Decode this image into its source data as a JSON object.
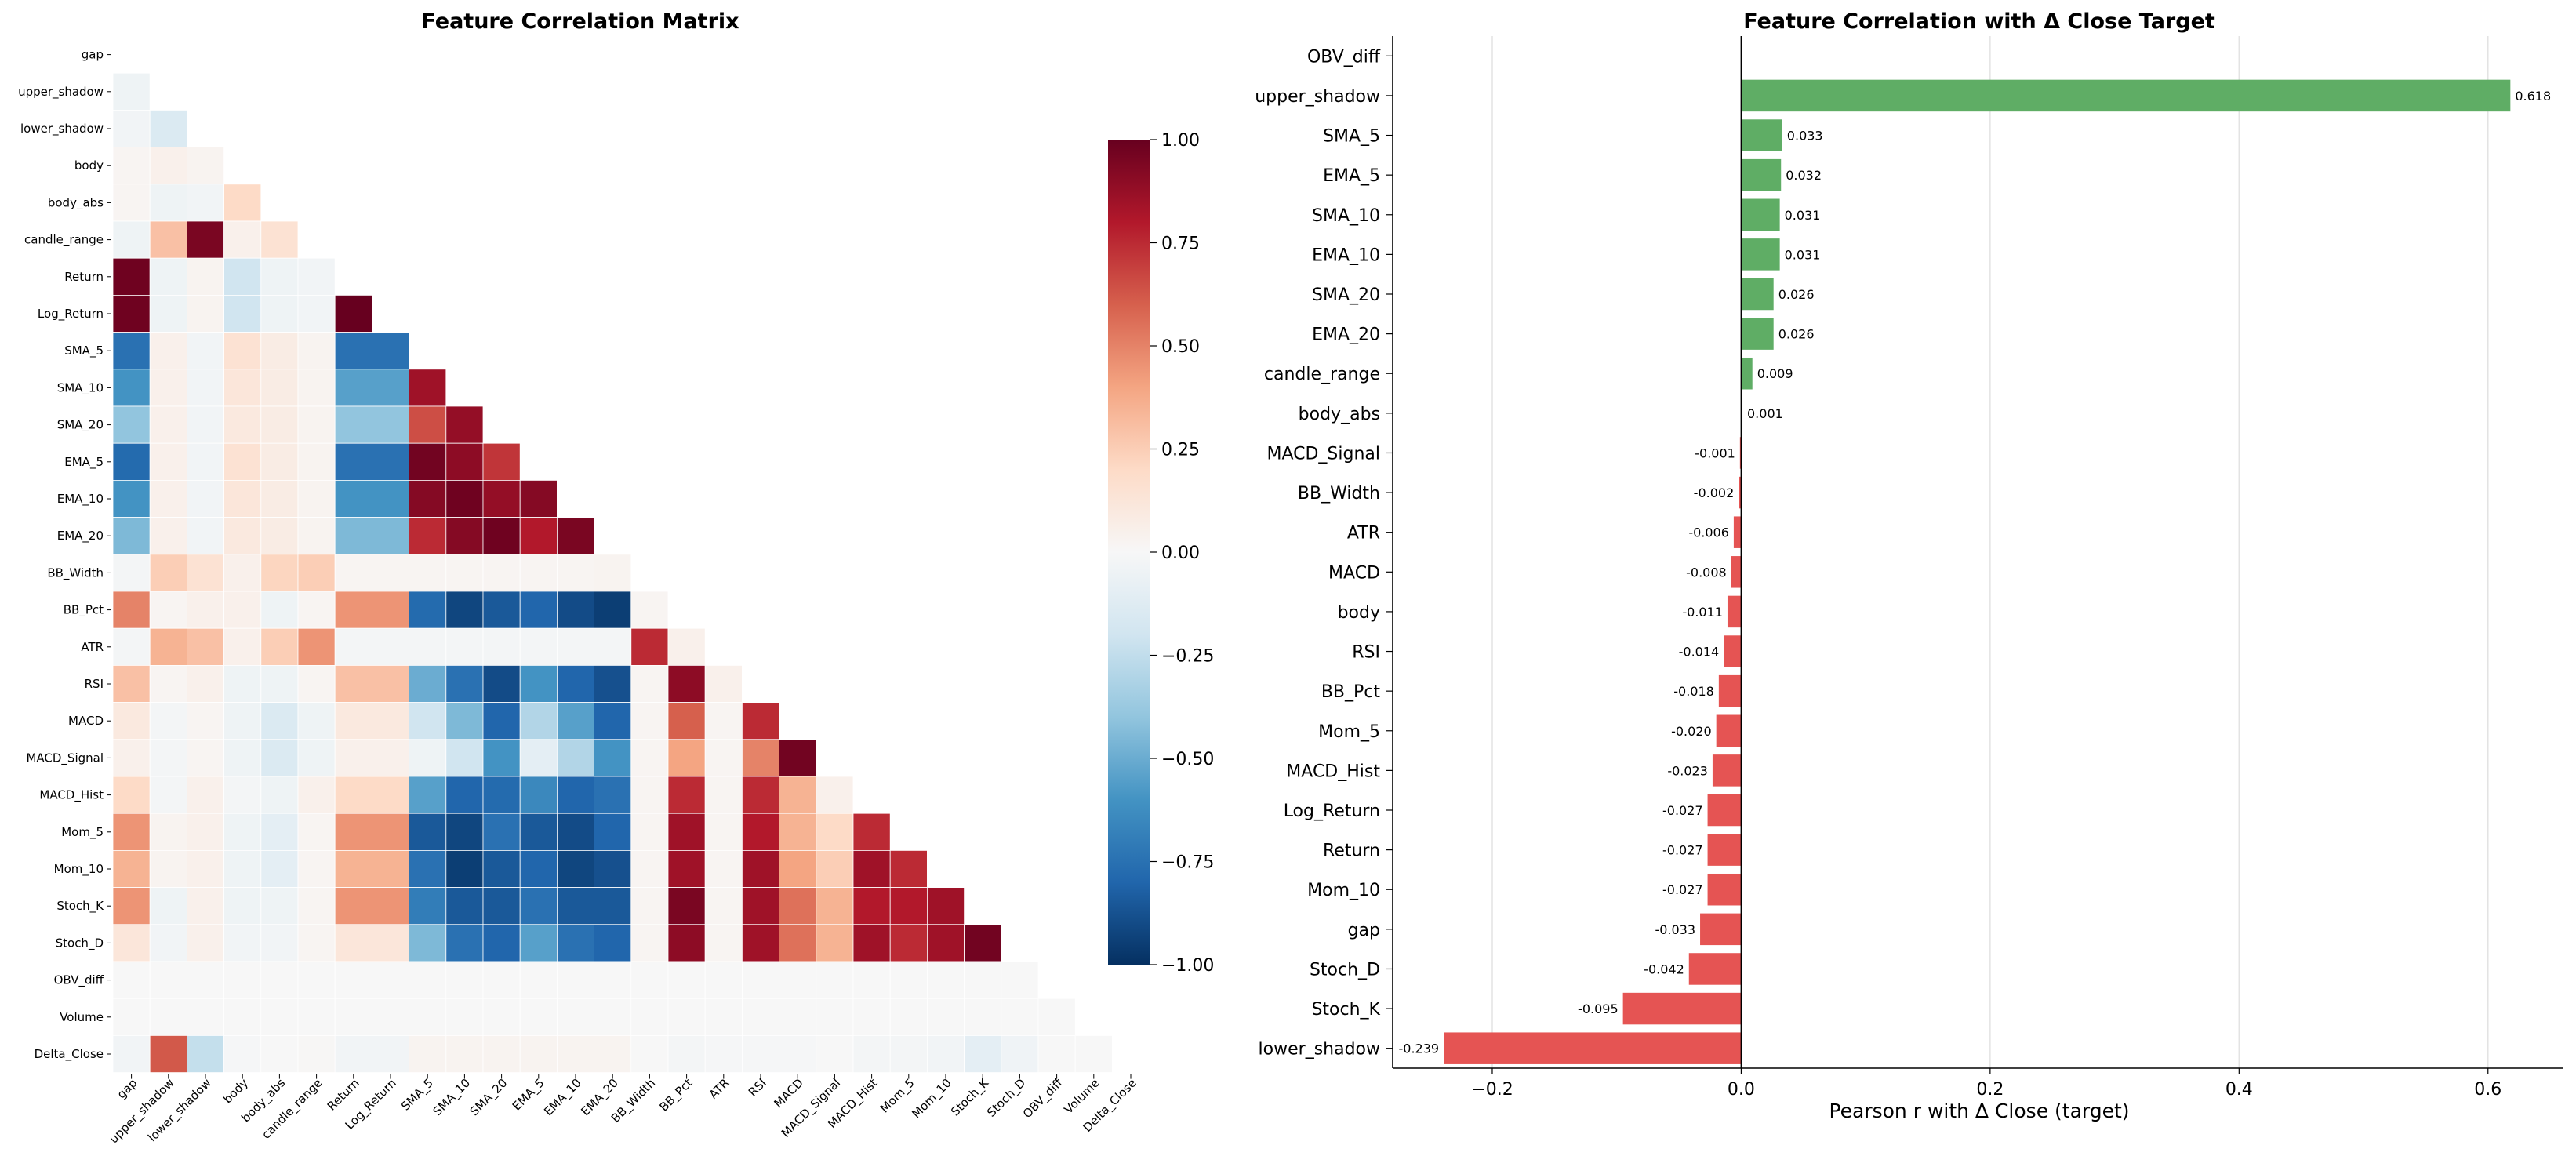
{
  "heatmap": {
    "title": "Feature Correlation Matrix",
    "colorbar_ticks": [
      "1.00",
      "0.75",
      "0.50",
      "0.25",
      "0.00",
      "−0.25",
      "−0.50",
      "−0.75",
      "−1.00"
    ]
  },
  "bar": {
    "title": "Feature Correlation with Δ Close Target",
    "xlabel": "Pearson r with Δ Close (target)",
    "x_ticks": [
      "−0.2",
      "0.0",
      "0.2",
      "0.4",
      "0.6"
    ]
  },
  "colors": {
    "positive": "#5fad65",
    "negative": "#e55453",
    "cmap": "RdBu_r"
  },
  "chart_data": [
    {
      "type": "heatmap",
      "title": "Feature Correlation Matrix",
      "mask": "upper-triangle",
      "labels": [
        "gap",
        "upper_shadow",
        "lower_shadow",
        "body",
        "body_abs",
        "candle_range",
        "Return",
        "Log_Return",
        "SMA_5",
        "SMA_10",
        "SMA_20",
        "EMA_5",
        "EMA_10",
        "EMA_20",
        "BB_Width",
        "BB_Pct",
        "ATR",
        "RSI",
        "MACD",
        "MACD_Signal",
        "MACD_Hist",
        "Mom_5",
        "Mom_10",
        "Stoch_K",
        "Stoch_D",
        "OBV_diff",
        "Volume",
        "Delta_Close"
      ],
      "vmin": -1,
      "vmax": 1,
      "rows": [
        [],
        [
          -0.05
        ],
        [
          -0.03,
          -0.15
        ],
        [
          0.02,
          0.05,
          0.03
        ],
        [
          0.02,
          -0.05,
          -0.03,
          0.2
        ],
        [
          -0.05,
          0.3,
          0.95,
          0.05,
          0.15
        ],
        [
          0.98,
          -0.05,
          0.03,
          -0.2,
          -0.05,
          -0.03
        ],
        [
          0.98,
          -0.05,
          0.03,
          -0.2,
          -0.05,
          -0.03,
          1.0
        ],
        [
          -0.75,
          0.05,
          -0.03,
          0.15,
          0.08,
          0.03,
          -0.75,
          -0.75
        ],
        [
          -0.6,
          0.05,
          -0.03,
          0.12,
          0.08,
          0.03,
          -0.55,
          -0.55,
          0.85
        ],
        [
          -0.4,
          0.05,
          -0.03,
          0.1,
          0.08,
          0.03,
          -0.4,
          -0.4,
          0.65,
          0.88
        ],
        [
          -0.78,
          0.05,
          -0.03,
          0.15,
          0.08,
          0.03,
          -0.75,
          -0.75,
          0.97,
          0.9,
          0.72
        ],
        [
          -0.6,
          0.05,
          -0.03,
          0.12,
          0.08,
          0.03,
          -0.6,
          -0.6,
          0.92,
          0.98,
          0.88,
          0.92
        ],
        [
          -0.45,
          0.05,
          -0.03,
          0.1,
          0.08,
          0.03,
          -0.45,
          -0.45,
          0.75,
          0.92,
          0.98,
          0.8,
          0.95
        ],
        [
          -0.02,
          0.25,
          0.15,
          0.05,
          0.22,
          0.25,
          0.02,
          0.02,
          0.02,
          0.02,
          0.02,
          0.02,
          0.02,
          0.03
        ],
        [
          0.5,
          0.02,
          0.05,
          0.05,
          -0.05,
          0.02,
          0.45,
          0.45,
          -0.78,
          -0.92,
          -0.85,
          -0.8,
          -0.9,
          -0.95,
          0.02
        ],
        [
          -0.02,
          0.35,
          0.3,
          0.05,
          0.25,
          0.45,
          -0.02,
          -0.02,
          -0.02,
          -0.02,
          -0.02,
          -0.02,
          -0.02,
          -0.02,
          0.75,
          0.05
        ],
        [
          0.3,
          0.02,
          0.05,
          -0.05,
          -0.05,
          0.02,
          0.3,
          0.3,
          -0.5,
          -0.75,
          -0.9,
          -0.6,
          -0.8,
          -0.88,
          0.02,
          0.9,
          0.05
        ],
        [
          0.1,
          -0.02,
          0.02,
          -0.05,
          -0.15,
          -0.05,
          0.1,
          0.1,
          -0.2,
          -0.45,
          -0.8,
          -0.3,
          -0.55,
          -0.8,
          0.02,
          0.6,
          0.02,
          0.75
        ],
        [
          0.05,
          -0.02,
          0.02,
          -0.05,
          -0.15,
          -0.05,
          0.05,
          0.05,
          -0.05,
          -0.2,
          -0.6,
          -0.1,
          -0.3,
          -0.6,
          0.02,
          0.4,
          0.02,
          0.5,
          0.97
        ],
        [
          0.2,
          -0.02,
          0.05,
          -0.02,
          -0.05,
          0.05,
          0.2,
          0.2,
          -0.55,
          -0.8,
          -0.78,
          -0.65,
          -0.8,
          -0.75,
          0.02,
          0.75,
          0.02,
          0.75,
          0.35,
          0.05
        ],
        [
          0.45,
          0.03,
          0.05,
          -0.05,
          -0.1,
          0.02,
          0.45,
          0.45,
          -0.85,
          -0.92,
          -0.75,
          -0.85,
          -0.9,
          -0.8,
          0.02,
          0.85,
          0.02,
          0.8,
          0.35,
          0.2,
          0.75
        ],
        [
          0.35,
          0.03,
          0.05,
          -0.05,
          -0.1,
          0.02,
          0.35,
          0.35,
          -0.75,
          -0.95,
          -0.85,
          -0.8,
          -0.92,
          -0.88,
          0.02,
          0.85,
          0.02,
          0.85,
          0.4,
          0.25,
          0.85,
          0.75
        ],
        [
          0.45,
          -0.05,
          0.05,
          -0.05,
          -0.05,
          0.02,
          0.45,
          0.45,
          -0.7,
          -0.85,
          -0.85,
          -0.75,
          -0.85,
          -0.85,
          0.02,
          0.95,
          0.02,
          0.85,
          0.55,
          0.35,
          0.8,
          0.8,
          0.85
        ],
        [
          0.12,
          -0.03,
          0.05,
          -0.03,
          -0.03,
          0.02,
          0.12,
          0.12,
          -0.45,
          -0.75,
          -0.8,
          -0.55,
          -0.75,
          -0.8,
          0.02,
          0.9,
          0.02,
          0.85,
          0.55,
          0.35,
          0.85,
          0.75,
          0.85,
          0.97
        ],
        [
          0,
          0,
          0,
          0,
          0,
          0,
          0,
          0,
          0,
          0,
          0,
          0,
          0,
          0,
          0,
          0,
          0,
          0,
          0,
          0,
          0,
          0,
          0,
          0,
          0
        ],
        [
          0,
          0,
          0,
          0,
          0,
          0,
          0,
          0,
          0,
          0,
          0,
          0,
          0,
          0,
          0,
          0,
          0,
          0,
          0,
          0,
          0,
          0,
          0,
          0,
          0,
          0
        ],
        [
          -0.03,
          0.62,
          -0.24,
          -0.01,
          0.0,
          0.01,
          -0.03,
          -0.03,
          0.03,
          0.03,
          0.03,
          0.03,
          0.03,
          0.03,
          0.0,
          -0.02,
          -0.01,
          -0.01,
          -0.01,
          0.0,
          -0.02,
          -0.02,
          -0.03,
          -0.1,
          -0.04,
          0,
          0
        ]
      ]
    },
    {
      "type": "bar",
      "orientation": "horizontal",
      "title": "Feature Correlation with Δ Close Target",
      "xlabel": "Pearson r with Δ Close (target)",
      "xlim": [
        -0.28,
        0.66
      ],
      "categories": [
        "OBV_diff",
        "upper_shadow",
        "SMA_5",
        "EMA_5",
        "SMA_10",
        "EMA_10",
        "SMA_20",
        "EMA_20",
        "candle_range",
        "body_abs",
        "MACD_Signal",
        "BB_Width",
        "ATR",
        "MACD",
        "body",
        "RSI",
        "BB_Pct",
        "Mom_5",
        "MACD_Hist",
        "Log_Return",
        "Return",
        "Mom_10",
        "gap",
        "Stoch_D",
        "Stoch_K",
        "lower_shadow"
      ],
      "values": [
        null,
        0.618,
        0.033,
        0.032,
        0.031,
        0.031,
        0.026,
        0.026,
        0.009,
        0.001,
        -0.001,
        -0.002,
        -0.006,
        -0.008,
        -0.011,
        -0.014,
        -0.018,
        -0.02,
        -0.023,
        -0.027,
        -0.027,
        -0.027,
        -0.033,
        -0.042,
        -0.095,
        -0.239
      ],
      "value_labels": [
        "",
        "0.618",
        "0.033",
        "0.032",
        "0.031",
        "0.031",
        "0.026",
        "0.026",
        "0.009",
        "0.001",
        "-0.001",
        "-0.002",
        "-0.006",
        "-0.008",
        "-0.011",
        "-0.014",
        "-0.018",
        "-0.020",
        "-0.023",
        "-0.027",
        "-0.027",
        "-0.027",
        "-0.033",
        "-0.042",
        "-0.095",
        "-0.239"
      ],
      "grid": "x"
    }
  ]
}
